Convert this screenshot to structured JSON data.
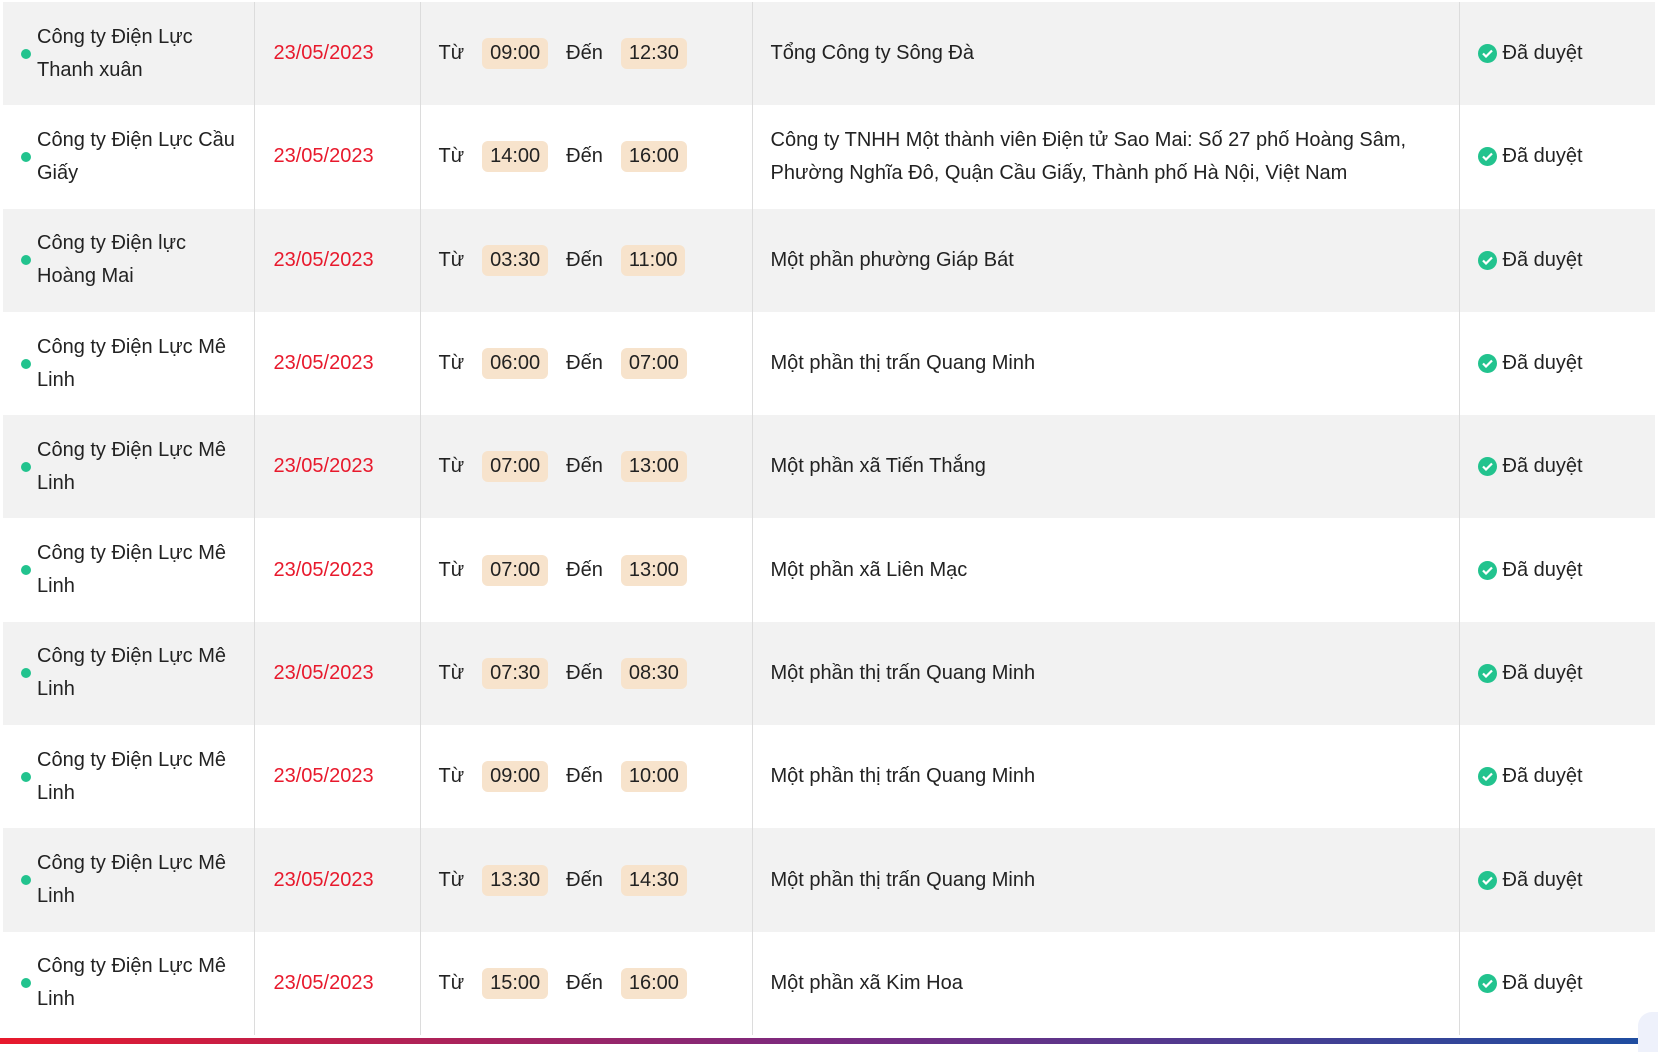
{
  "labels": {
    "from": "Từ",
    "to": "Đến"
  },
  "colors": {
    "date": "#e8192c",
    "status_ok": "#22c38e",
    "time_bg": "#f7e3cc"
  },
  "rows": [
    {
      "unit": "Công ty Điện Lực Thanh xuân",
      "date": "23/05/2023",
      "from": "09:00",
      "to": "12:30",
      "area": "Tổng Công ty Sông Đà",
      "status": "Đã duyệt"
    },
    {
      "unit": "Công ty Điện Lực Cầu Giấy",
      "date": "23/05/2023",
      "from": "14:00",
      "to": "16:00",
      "area": "Công ty TNHH Một thành viên Điện tử Sao Mai: Số 27 phố Hoàng Sâm, Phường Nghĩa Đô, Quận Cầu Giấy, Thành phố Hà Nội, Việt Nam",
      "status": "Đã duyệt"
    },
    {
      "unit": "Công ty Điện lực Hoàng Mai",
      "date": "23/05/2023",
      "from": "03:30",
      "to": "11:00",
      "area": "Một phần phường Giáp Bát",
      "status": "Đã duyệt"
    },
    {
      "unit": "Công ty Điện Lực Mê Linh",
      "date": "23/05/2023",
      "from": "06:00",
      "to": "07:00",
      "area": "Một phần thị trấn Quang Minh",
      "status": "Đã duyệt"
    },
    {
      "unit": "Công ty Điện Lực Mê Linh",
      "date": "23/05/2023",
      "from": "07:00",
      "to": "13:00",
      "area": "Một phần xã Tiến Thắng",
      "status": "Đã duyệt"
    },
    {
      "unit": "Công ty Điện Lực Mê Linh",
      "date": "23/05/2023",
      "from": "07:00",
      "to": "13:00",
      "area": "Một phần xã Liên Mạc",
      "status": "Đã duyệt"
    },
    {
      "unit": "Công ty Điện Lực Mê Linh",
      "date": "23/05/2023",
      "from": "07:30",
      "to": "08:30",
      "area": "Một phần thị trấn Quang Minh",
      "status": "Đã duyệt"
    },
    {
      "unit": "Công ty Điện Lực Mê Linh",
      "date": "23/05/2023",
      "from": "09:00",
      "to": "10:00",
      "area": "Một phần thị trấn Quang Minh",
      "status": "Đã duyệt"
    },
    {
      "unit": "Công ty Điện Lực Mê Linh",
      "date": "23/05/2023",
      "from": "13:30",
      "to": "14:30",
      "area": "Một phần thị trấn Quang Minh",
      "status": "Đã duyệt"
    },
    {
      "unit": "Công ty Điện Lực Mê Linh",
      "date": "23/05/2023",
      "from": "15:00",
      "to": "16:00",
      "area": "Một phần xã Kim Hoa",
      "status": "Đã duyệt"
    }
  ]
}
